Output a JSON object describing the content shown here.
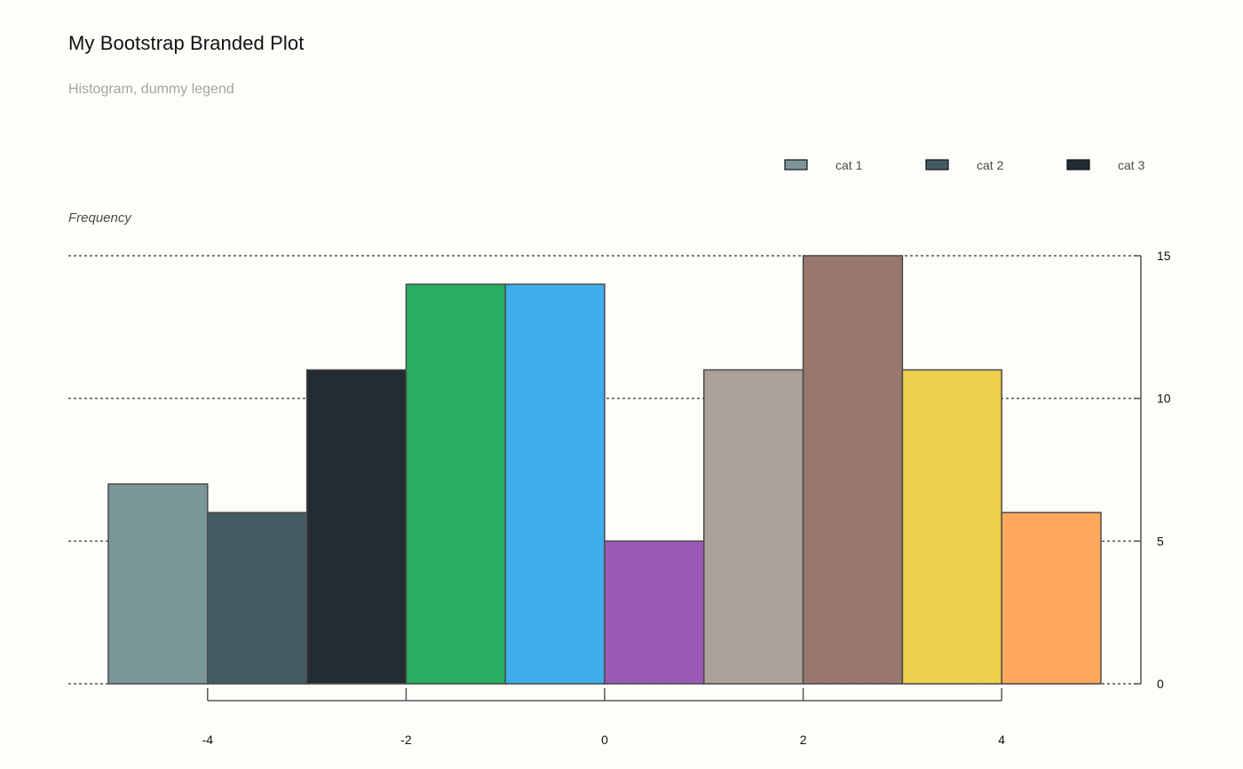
{
  "title": "My Bootstrap Branded Plot",
  "subtitle": "Histogram, dummy legend",
  "legend": [
    {
      "label": "cat 1",
      "color": "#7b9696"
    },
    {
      "label": "cat 2",
      "color": "#445b61"
    },
    {
      "label": "cat 3",
      "color": "#222c31"
    }
  ],
  "chart_data": {
    "type": "bar",
    "title": "My Bootstrap Branded Plot",
    "subtitle": "Histogram, dummy legend",
    "ylabel": "Frequency",
    "xlabel": "",
    "bin_edges": [
      -5,
      -4,
      -3,
      -2,
      -1,
      0,
      1,
      2,
      3,
      4,
      5
    ],
    "values": [
      7,
      6,
      11,
      14,
      14,
      5,
      11,
      15,
      11,
      6
    ],
    "colors": [
      "#7b9696",
      "#445b61",
      "#222c31",
      "#27ae60",
      "#3daeea",
      "#9b59b6",
      "#aca299",
      "#98786d",
      "#edcf4c",
      "#fea95c"
    ],
    "ylim": [
      0,
      15
    ],
    "y_ticks": [
      0,
      5,
      10,
      15
    ],
    "x_ticks": [
      -4,
      -2,
      0,
      2,
      4
    ],
    "y_axis_side": "right",
    "grid": "horizontal dotted",
    "legend_position": "top-right"
  }
}
